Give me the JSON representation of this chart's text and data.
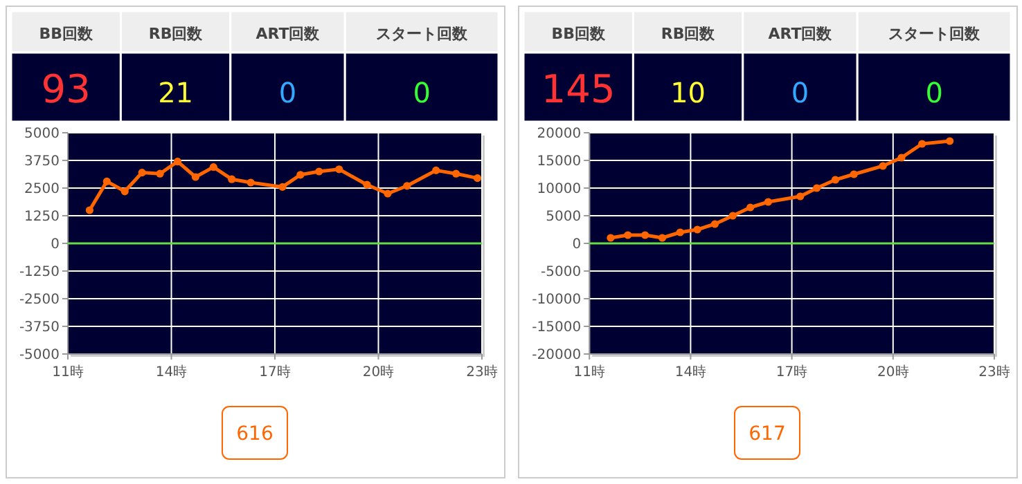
{
  "chart_data": [
    {
      "type": "other",
      "categories": [
        "BB回数",
        "RB回数",
        "ART回数",
        "スタート回数"
      ],
      "value_labels": [
        "93",
        "21",
        "0",
        "0"
      ]
    },
    {
      "type": "line",
      "color": "#ff6600",
      "marker": "circle",
      "grid": true,
      "x": [
        11.63,
        12.13,
        12.65,
        13.15,
        13.67,
        14.18,
        14.7,
        15.22,
        15.75,
        16.3,
        17.22,
        17.74,
        18.28,
        18.86,
        19.67,
        20.27,
        20.83,
        21.67,
        22.25,
        22.87
      ],
      "values": [
        1500,
        2800,
        2350,
        3200,
        3150,
        3700,
        3000,
        3450,
        2900,
        2750,
        2550,
        3100,
        3250,
        3350,
        2650,
        2250,
        2600,
        3300,
        3150,
        2950
      ],
      "xlim": [
        11,
        23
      ],
      "xticks": [
        {
          "value": 11,
          "label": "11時"
        },
        {
          "value": 14,
          "label": "14時"
        },
        {
          "value": 17,
          "label": "17時"
        },
        {
          "value": 20,
          "label": "20時"
        },
        {
          "value": 23,
          "label": "23時"
        }
      ],
      "ylim": [
        -5000,
        5000
      ],
      "yticks": [
        -5000,
        -3750,
        -2500,
        -1250,
        0,
        1250,
        2500,
        3750,
        5000
      ],
      "ref_lines": [
        {
          "axis": "y",
          "value": 0,
          "color": "#66dd44"
        }
      ],
      "annotations": [
        "616"
      ]
    },
    {
      "type": "other",
      "categories": [
        "BB回数",
        "RB回数",
        "ART回数",
        "スタート回数"
      ],
      "value_labels": [
        "145",
        "10",
        "0",
        "0"
      ]
    },
    {
      "type": "line",
      "color": "#ff6600",
      "marker": "circle",
      "grid": true,
      "x": [
        11.63,
        12.14,
        12.65,
        13.16,
        13.69,
        14.2,
        14.72,
        15.25,
        15.77,
        16.3,
        17.25,
        17.74,
        18.29,
        18.84,
        19.7,
        20.25,
        20.86,
        21.68
      ],
      "values": [
        1000,
        1500,
        1500,
        1000,
        2000,
        2500,
        3500,
        5000,
        6500,
        7500,
        8500,
        10000,
        11500,
        12500,
        14000,
        15500,
        18000,
        18500
      ],
      "xlim": [
        11,
        23
      ],
      "xticks": [
        {
          "value": 11,
          "label": "11時"
        },
        {
          "value": 14,
          "label": "14時"
        },
        {
          "value": 17,
          "label": "17時"
        },
        {
          "value": 20,
          "label": "20時"
        },
        {
          "value": 23,
          "label": "23時"
        }
      ],
      "ylim": [
        -20000,
        20000
      ],
      "yticks": [
        -20000,
        -15000,
        -10000,
        -5000,
        0,
        5000,
        10000,
        15000,
        20000
      ],
      "ref_lines": [
        {
          "axis": "y",
          "value": 0,
          "color": "#66dd44"
        }
      ],
      "annotations": [
        "617"
      ]
    }
  ]
}
